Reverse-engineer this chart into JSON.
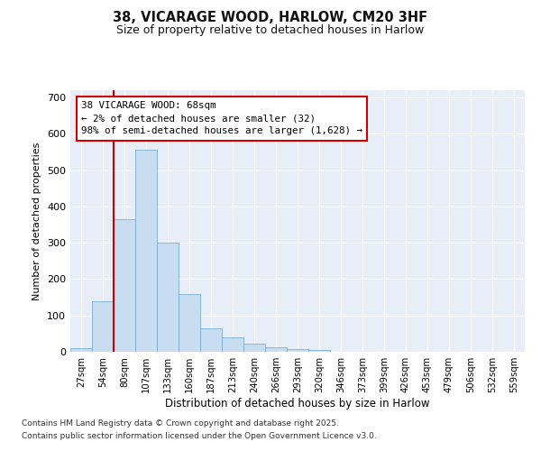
{
  "title_line1": "38, VICARAGE WOOD, HARLOW, CM20 3HF",
  "title_line2": "Size of property relative to detached houses in Harlow",
  "xlabel": "Distribution of detached houses by size in Harlow",
  "ylabel": "Number of detached properties",
  "categories": [
    "27sqm",
    "54sqm",
    "80sqm",
    "107sqm",
    "133sqm",
    "160sqm",
    "187sqm",
    "213sqm",
    "240sqm",
    "266sqm",
    "293sqm",
    "320sqm",
    "346sqm",
    "373sqm",
    "399sqm",
    "426sqm",
    "453sqm",
    "479sqm",
    "506sqm",
    "532sqm",
    "559sqm"
  ],
  "values": [
    10,
    140,
    365,
    555,
    300,
    160,
    65,
    40,
    22,
    12,
    7,
    4,
    0,
    0,
    0,
    0,
    0,
    0,
    0,
    0,
    0
  ],
  "bar_color": "#c8ddf0",
  "bar_edge_color": "#7ab0d8",
  "bg_color": "#e8eef8",
  "grid_color": "#ffffff",
  "vline_x": 1.5,
  "vline_color": "#cc0000",
  "annotation_text": "38 VICARAGE WOOD: 68sqm\n← 2% of detached houses are smaller (32)\n98% of semi-detached houses are larger (1,628) →",
  "annotation_box_edgecolor": "#cc0000",
  "ylim": [
    0,
    720
  ],
  "yticks": [
    0,
    100,
    200,
    300,
    400,
    500,
    600,
    700
  ],
  "fig_bg_color": "#ffffff",
  "footer1": "Contains HM Land Registry data © Crown copyright and database right 2025.",
  "footer2": "Contains public sector information licensed under the Open Government Licence v3.0."
}
